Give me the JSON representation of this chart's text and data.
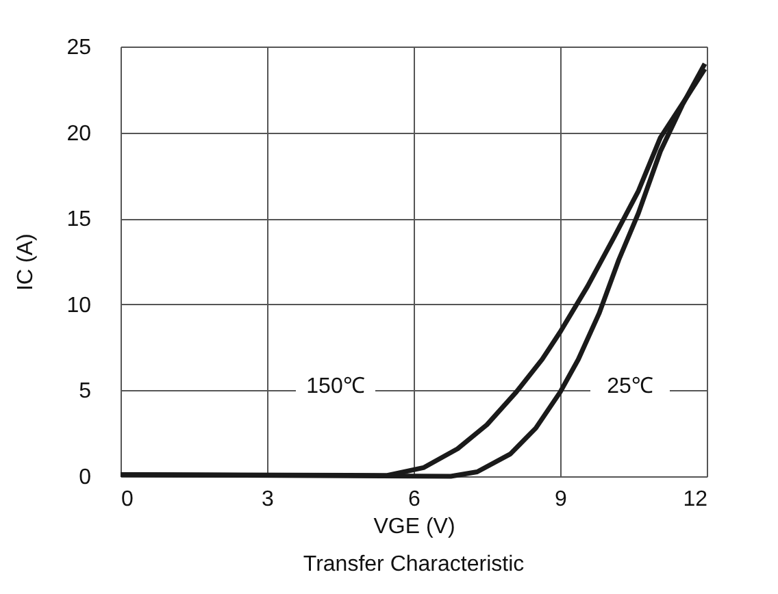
{
  "chart_data": {
    "type": "line",
    "title": "Transfer Characteristic",
    "xlabel": "VGE (V)",
    "ylabel": "IC (A)",
    "xlim": [
      0,
      12
    ],
    "xticks": [
      0,
      3,
      6,
      9,
      12
    ],
    "ylim": [
      0,
      25
    ],
    "yticks": [
      0,
      5,
      10,
      15,
      20,
      25
    ],
    "grid": true,
    "legend": false,
    "marker": "none",
    "line_style": "solid",
    "series": [
      {
        "color": "#1a1a1a",
        "x": [
          0,
          5.46,
          6.2,
          6.9,
          7.5,
          8.1,
          8.63,
          9.0,
          9.56,
          10.1,
          10.6,
          11.05,
          11.6,
          11.96
        ],
        "values": [
          0.1,
          0.05,
          0.5,
          1.6,
          3,
          4.9,
          6.8,
          8.4,
          11.05,
          13.9,
          16.6,
          19.7,
          22.1,
          23.7
        ]
      },
      {
        "color": "#1a1a1a",
        "x": [
          0,
          6.76,
          7.3,
          7.98,
          8.5,
          9.0,
          9.37,
          9.8,
          10.2,
          10.6,
          11.05,
          11.5,
          11.96
        ],
        "values": [
          0.1,
          0,
          0.26,
          1.3,
          2.8,
          4.9,
          6.8,
          9.5,
          12.6,
          15.3,
          18.9,
          21.6,
          24
        ]
      }
    ],
    "annotations": [
      "150℃",
      "25℃"
    ]
  }
}
